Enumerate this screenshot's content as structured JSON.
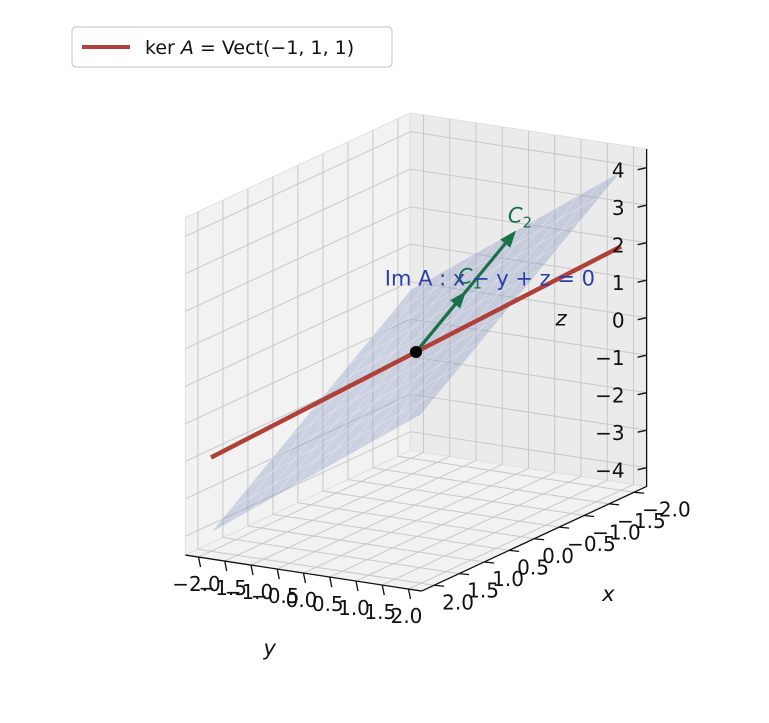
{
  "chart_data": {
    "type": "3d-surface-line",
    "x": {
      "label": "x",
      "lim": [
        -2,
        2
      ],
      "ticks": [
        -2.0,
        -1.5,
        -1.0,
        -0.5,
        0.0,
        0.5,
        1.0,
        1.5,
        2.0
      ],
      "tick_labels": [
        "−2.0",
        "−1.5",
        "−1.0",
        "−0.5",
        "0.0",
        "0.5",
        "1.0",
        "1.5",
        "2.0"
      ]
    },
    "y": {
      "label": "y",
      "lim": [
        -2,
        2
      ],
      "ticks": [
        -2.0,
        -1.5,
        -1.0,
        -0.5,
        0.0,
        0.5,
        1.0,
        1.5,
        2.0
      ],
      "tick_labels": [
        "−2.0",
        "−1.5",
        "−1.0",
        "−0.5",
        "0.0",
        "0.5",
        "1.0",
        "1.5",
        "2.0"
      ]
    },
    "z": {
      "label": "z",
      "lim": [
        -4,
        4
      ],
      "ticks": [
        -4,
        -3,
        -2,
        -1,
        0,
        1,
        2,
        3,
        4
      ],
      "tick_labels": [
        "−4",
        "−3",
        "−2",
        "−1",
        "0",
        "1",
        "2",
        "3",
        "4"
      ]
    },
    "grid": true,
    "plane": {
      "equation": "x - y + z = 0",
      "label": "Im A : x − y + z = 0",
      "label_pos": [
        -2,
        -2.5,
        0
      ],
      "color": "#8090c0",
      "label_color": "#2a40a8"
    },
    "line": {
      "name": "ker A = Vect(−1, 1, 1)",
      "direction": [
        -1,
        1,
        1
      ],
      "t_range": [
        -2,
        2
      ],
      "color": "#b0403a"
    },
    "origin": [
      0,
      0,
      0
    ],
    "vectors": [
      {
        "name": "C1",
        "label_main": "C",
        "label_sub": "1",
        "from": [
          0,
          0,
          0
        ],
        "to": [
          -1,
          0,
          1
        ],
        "color": "#1a7048"
      },
      {
        "name": "C2",
        "label_main": "C",
        "label_sub": "2",
        "from": [
          0,
          0,
          0
        ],
        "to": [
          -2.0,
          0,
          2.0
        ],
        "color": "#1a7048"
      }
    ],
    "legend": {
      "placement": "top-left",
      "entries": [
        {
          "label_pre": "ker ",
          "label_var": "A",
          "label_post": " = Vect(−1, 1, 1)",
          "color": "#b0403a"
        }
      ]
    }
  }
}
